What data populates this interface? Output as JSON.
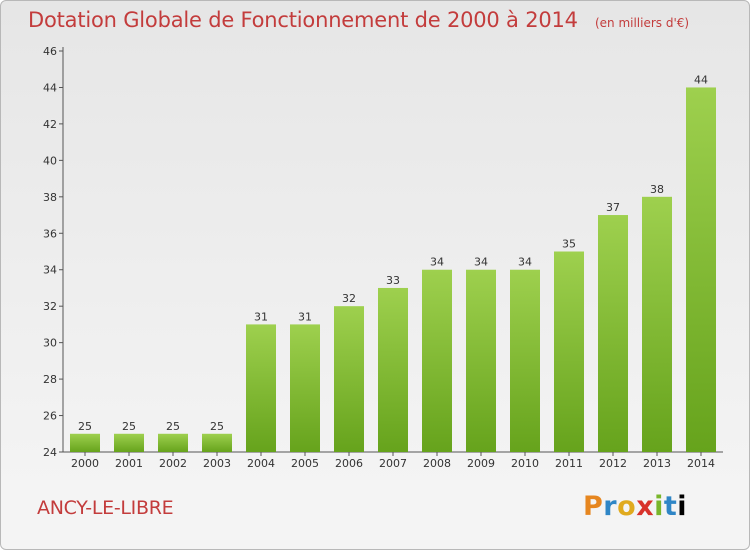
{
  "header": {
    "title": "Dotation Globale de Fonctionnement de 2000 à 2014",
    "unit": "(en milliers d'€)"
  },
  "commune": "ANCY-LE-LIBRE",
  "logo": {
    "text": "Proxiti"
  },
  "colors": {
    "title": "#c33c3c",
    "bar_light": "#9ed04e",
    "bar_dark": "#66a31c",
    "axis": "#555555"
  },
  "chart_data": {
    "type": "bar",
    "title": "Dotation Globale de Fonctionnement de 2000 à 2014",
    "subtitle": "(en milliers d'€)",
    "xlabel": "",
    "ylabel": "",
    "categories": [
      "2000",
      "2001",
      "2002",
      "2003",
      "2004",
      "2005",
      "2006",
      "2007",
      "2008",
      "2009",
      "2010",
      "2011",
      "2012",
      "2013",
      "2014"
    ],
    "values": [
      25,
      25,
      25,
      25,
      31,
      31,
      32,
      33,
      34,
      34,
      34,
      35,
      37,
      38,
      44
    ],
    "ylim": [
      24,
      46
    ],
    "yticks": [
      24,
      26,
      28,
      30,
      32,
      34,
      36,
      38,
      40,
      42,
      44,
      46
    ],
    "grid": false,
    "legend": "none"
  }
}
